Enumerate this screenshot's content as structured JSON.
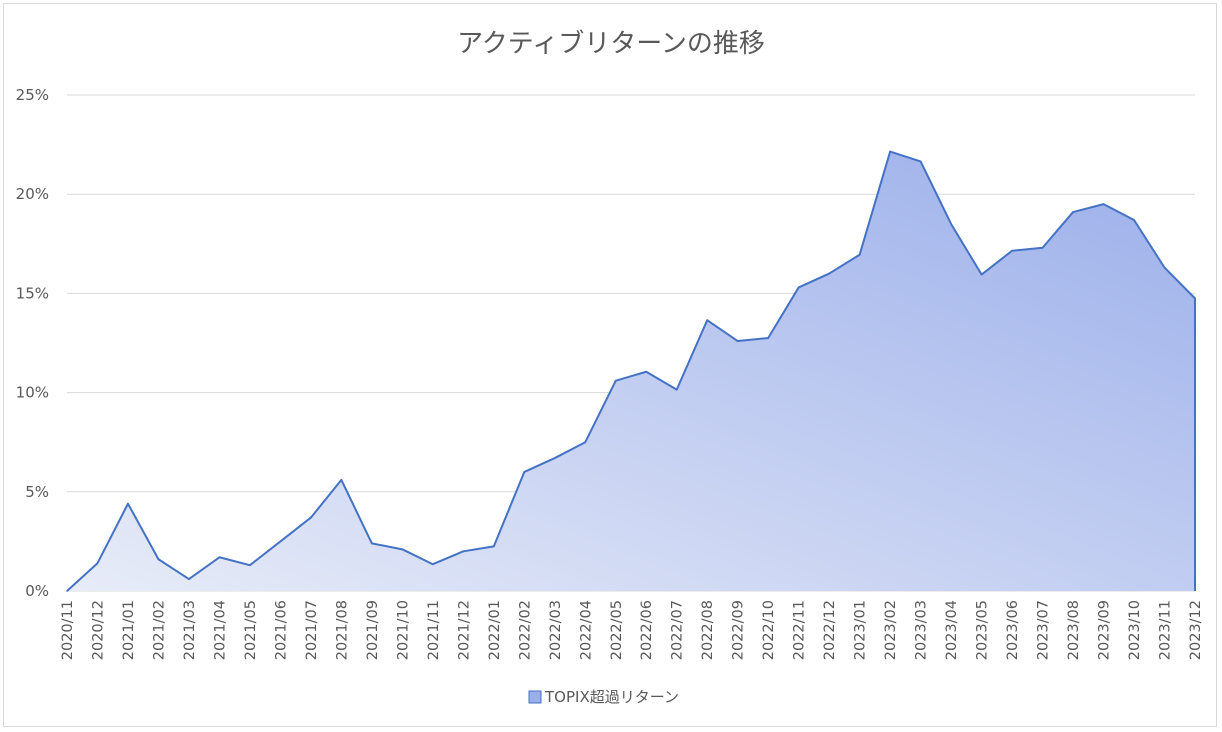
{
  "chart_data": {
    "type": "area",
    "title": "アクティブリターンの推移",
    "categories": [
      "2020/11",
      "2020/12",
      "2021/01",
      "2021/02",
      "2021/03",
      "2021/04",
      "2021/05",
      "2021/06",
      "2021/07",
      "2021/08",
      "2021/09",
      "2021/10",
      "2021/11",
      "2021/12",
      "2022/01",
      "2022/02",
      "2022/03",
      "2022/04",
      "2022/05",
      "2022/06",
      "2022/07",
      "2022/08",
      "2022/09",
      "2022/10",
      "2022/11",
      "2022/12",
      "2023/01",
      "2023/02",
      "2023/03",
      "2023/04",
      "2023/05",
      "2023/06",
      "2023/07",
      "2023/08",
      "2023/09",
      "2023/10",
      "2023/11",
      "2023/12"
    ],
    "series": [
      {
        "name": "TOPIX超過リターン",
        "values": [
          0.0,
          1.4,
          4.4,
          1.6,
          0.6,
          1.7,
          1.3,
          2.5,
          3.7,
          5.6,
          2.4,
          2.1,
          1.35,
          2.0,
          2.25,
          6.0,
          6.7,
          7.5,
          10.6,
          11.05,
          10.15,
          13.65,
          12.6,
          12.75,
          15.3,
          16.0,
          16.95,
          22.15,
          21.65,
          18.5,
          15.95,
          17.15,
          17.3,
          19.1,
          19.5,
          18.7,
          16.3,
          14.75
        ]
      }
    ],
    "yticks": [
      "0%",
      "5%",
      "10%",
      "15%",
      "20%",
      "25%"
    ],
    "ylim": [
      0,
      25
    ],
    "grid": true,
    "legend_position": "bottom",
    "colors": {
      "line": "#4472c4",
      "fill_start": "#e8ecf8",
      "fill_end": "#9aaeea",
      "grid": "#d9d9d9",
      "text": "#595959"
    }
  }
}
